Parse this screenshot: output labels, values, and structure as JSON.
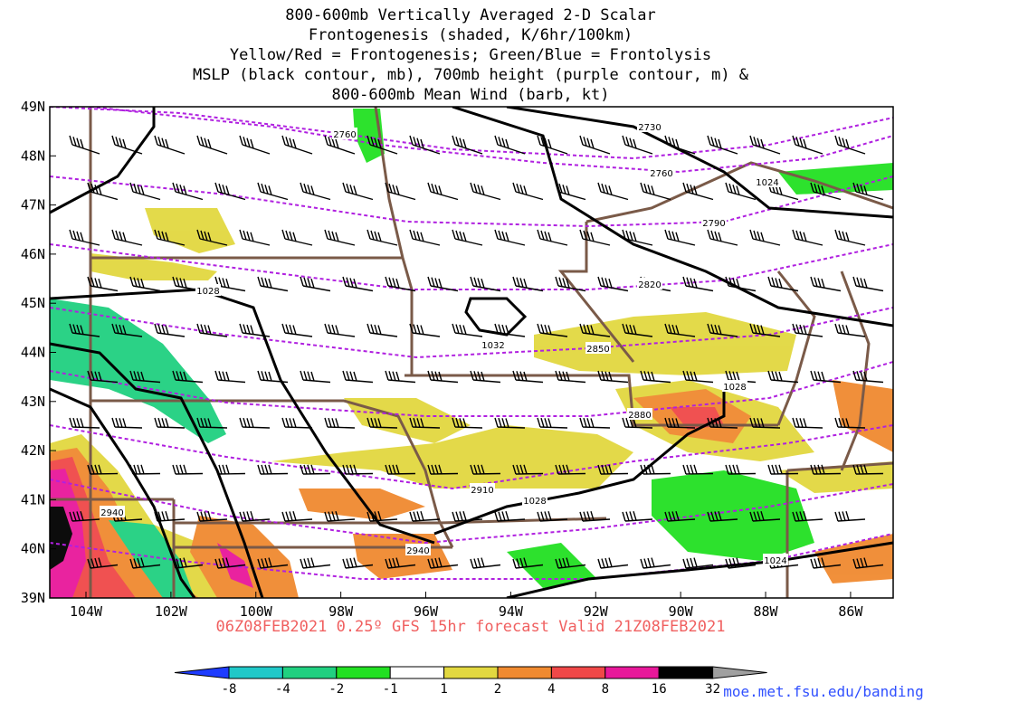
{
  "title_lines": [
    "800-600mb Vertically Averaged 2-D Scalar",
    "Frontogenesis (shaded, K/6hr/100km)",
    "Yellow/Red = Frontogenesis;  Green/Blue = Frontolysis",
    "MSLP (black contour, mb), 700mb height (purple contour, m) &",
    "800-600mb Mean Wind (barb, kt)"
  ],
  "lat_ticks": [
    {
      "value": 49,
      "label": "49N"
    },
    {
      "value": 48,
      "label": "48N"
    },
    {
      "value": 47,
      "label": "47N"
    },
    {
      "value": 46,
      "label": "46N"
    },
    {
      "value": 45,
      "label": "45N"
    },
    {
      "value": 44,
      "label": "44N"
    },
    {
      "value": 43,
      "label": "43N"
    },
    {
      "value": 42,
      "label": "42N"
    },
    {
      "value": 41,
      "label": "41N"
    },
    {
      "value": 40,
      "label": "40N"
    },
    {
      "value": 39,
      "label": "39N"
    }
  ],
  "lon_ticks": [
    {
      "value": 104,
      "label": "104W"
    },
    {
      "value": 102,
      "label": "102W"
    },
    {
      "value": 100,
      "label": "100W"
    },
    {
      "value": 98,
      "label": "98W"
    },
    {
      "value": 96,
      "label": "96W"
    },
    {
      "value": 94,
      "label": "94W"
    },
    {
      "value": 92,
      "label": "92W"
    },
    {
      "value": 90,
      "label": "90W"
    },
    {
      "value": 88,
      "label": "88W"
    },
    {
      "value": 86,
      "label": "86W"
    }
  ],
  "contour_labels": [
    "2760",
    "2730",
    "2760",
    "1024",
    "2790",
    "1028",
    "2820",
    "1032",
    "2850",
    "1028",
    "2880",
    "2910",
    "1028",
    "2940",
    "2940",
    "1024"
  ],
  "footer": "06Z08FEB2021 0.25º GFS 15hr forecast Valid 21Z08FEB2021",
  "colorbar": {
    "labels": [
      "-8",
      "-4",
      "-2",
      "-1",
      "1",
      "2",
      "4",
      "8",
      "16",
      "32"
    ],
    "colors": [
      "#1e3cff",
      "#20c8c8",
      "#20d080",
      "#22e022",
      "#ffffff",
      "#e2d840",
      "#f08a30",
      "#f04848",
      "#e8189a",
      "#000000",
      "#a0a0a0"
    ]
  },
  "url": "moe.met.fsu.edu/banding"
}
